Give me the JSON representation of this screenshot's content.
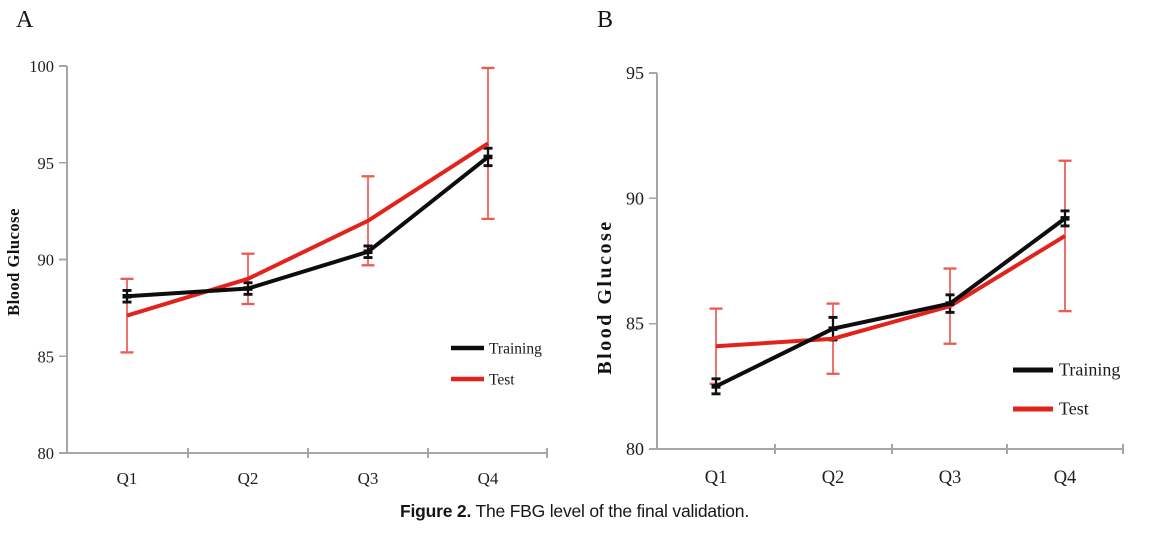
{
  "figure": {
    "caption_bold": "Figure 2.",
    "caption_rest": " The FBG level of the final validation."
  },
  "colors": {
    "training": "#0d0d0d",
    "test": "#e2231b",
    "test_error": "#ea5b51",
    "training_error": "#111111",
    "axis": "#a6a6a6",
    "text": "#1e1e1e",
    "background": "#ffffff"
  },
  "chart_data": [
    {
      "type": "line",
      "panel": "A",
      "title": "",
      "xlabel": "",
      "ylabel": "Blood Glucose",
      "categories": [
        "Q1",
        "Q2",
        "Q3",
        "Q4"
      ],
      "ylim": [
        80,
        100
      ],
      "yticks": [
        80,
        85,
        90,
        95,
        100
      ],
      "grid": false,
      "legend_position": "inside-right-lower",
      "series": [
        {
          "name": "Training",
          "color": "#0d0d0d",
          "marker": "bar",
          "values": [
            88.1,
            88.5,
            90.4,
            95.3
          ],
          "errors": [
            0.3,
            0.3,
            0.3,
            0.45
          ]
        },
        {
          "name": "Test",
          "color": "#e2231b",
          "marker": "none",
          "values": [
            87.1,
            89.0,
            92.0,
            96.0
          ],
          "errors": [
            1.9,
            1.3,
            2.3,
            3.9
          ]
        }
      ]
    },
    {
      "type": "line",
      "panel": "B",
      "title": "",
      "xlabel": "",
      "ylabel": "Blood Glucose",
      "categories": [
        "Q1",
        "Q2",
        "Q3",
        "Q4"
      ],
      "ylim": [
        80,
        95
      ],
      "yticks": [
        80,
        85,
        90,
        95
      ],
      "grid": false,
      "legend_position": "inside-right-lower",
      "series": [
        {
          "name": "Training",
          "color": "#0d0d0d",
          "marker": "bar",
          "values": [
            82.5,
            84.8,
            85.8,
            89.2
          ],
          "errors": [
            0.3,
            0.45,
            0.35,
            0.3
          ]
        },
        {
          "name": "Test",
          "color": "#e2231b",
          "marker": "none",
          "values": [
            84.1,
            84.4,
            85.7,
            88.5
          ],
          "errors": [
            1.5,
            1.4,
            1.5,
            3.0
          ]
        }
      ]
    }
  ]
}
